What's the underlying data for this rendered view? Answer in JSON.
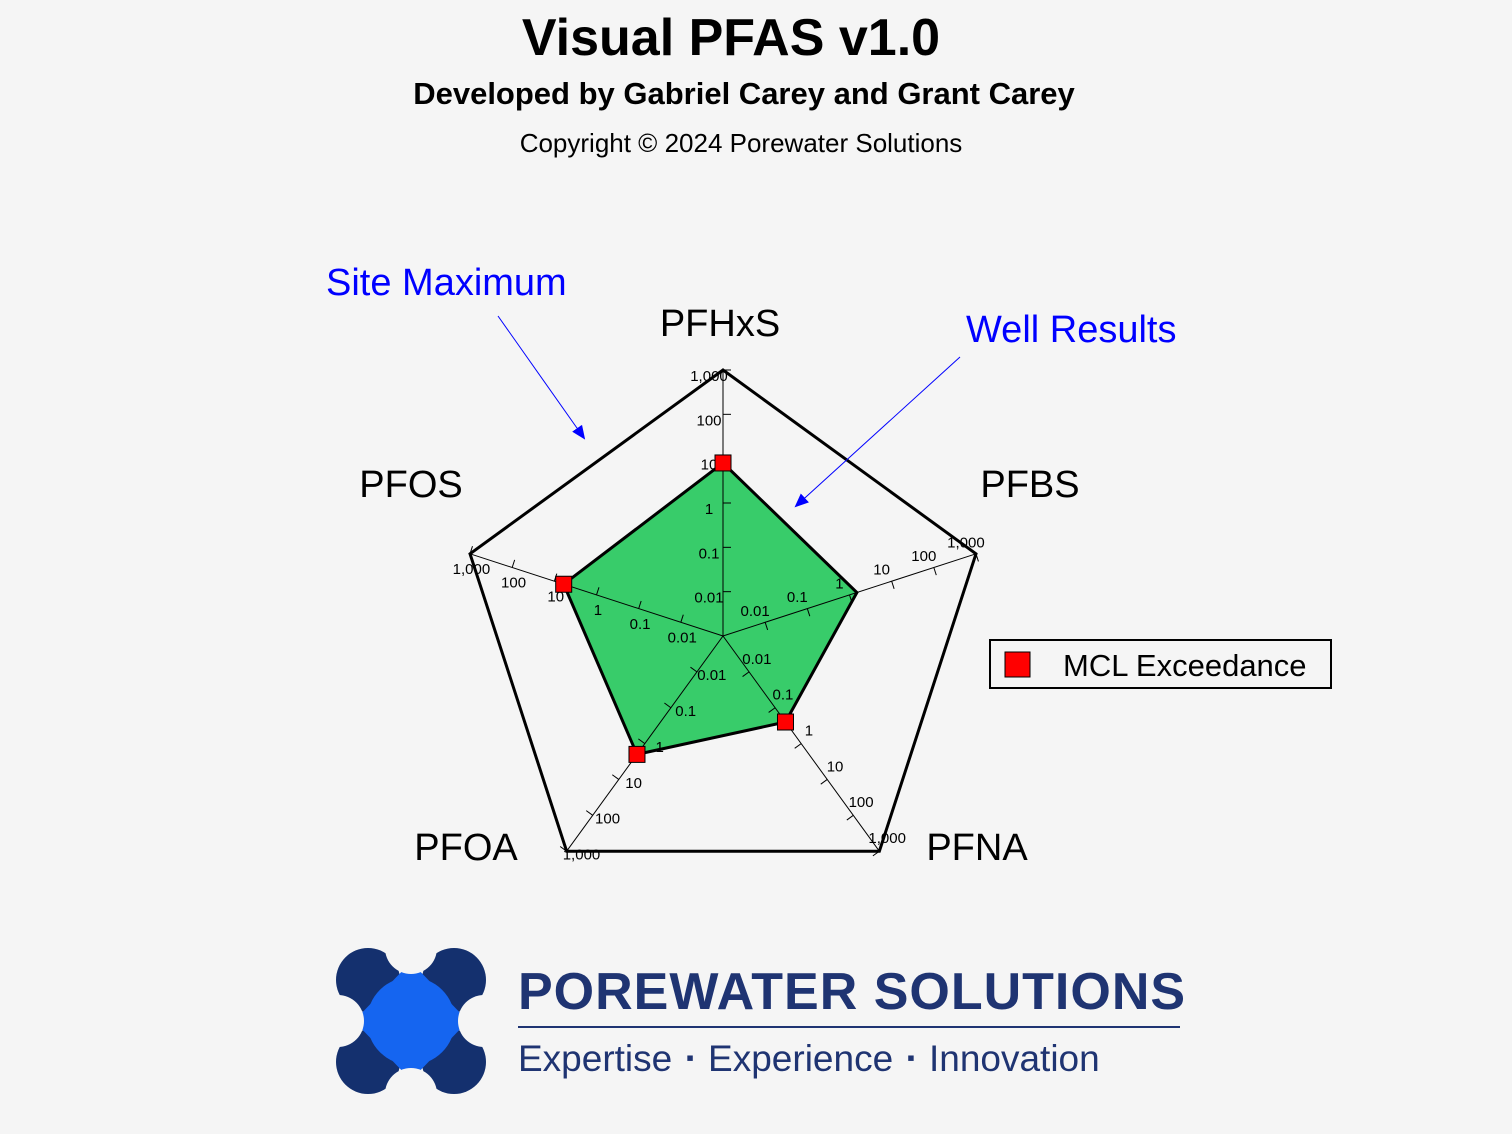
{
  "header": {
    "title": "Visual PFAS v1.0",
    "subtitle": "Developed by Gabriel Carey and Grant Carey",
    "copyright": "Copyright © 2024 Porewater Solutions"
  },
  "chart_data": {
    "type": "radar",
    "scale": "log",
    "axes": [
      "PFHxS",
      "PFBS",
      "PFNA",
      "PFOA",
      "PFOS"
    ],
    "tick_values": [
      0.01,
      0.1,
      1,
      10,
      100,
      1000
    ],
    "tick_labels": [
      "0.01",
      "0.1",
      "1",
      "10",
      "100",
      "1,000"
    ],
    "range": [
      0.001,
      1000
    ],
    "series": [
      {
        "name": "Site Maximum",
        "values": [
          1000,
          1000,
          1000,
          1000,
          1000
        ],
        "fill": "none",
        "stroke": "#000000"
      },
      {
        "name": "Well Results",
        "values": [
          8,
          1.5,
          0.25,
          2,
          6
        ],
        "fill": "#38cc6a",
        "stroke": "#000000"
      }
    ],
    "mcl_exceedance": [
      true,
      false,
      true,
      true,
      true
    ],
    "annotations": [
      {
        "text": "Site Maximum",
        "color": "#0000ff"
      },
      {
        "text": "Well Results",
        "color": "#0000ff"
      }
    ],
    "legend": {
      "label": "MCL Exceedance",
      "marker_color": "#ff0000",
      "position": "right"
    }
  },
  "brand": {
    "name": "POREWATER SOLUTIONS",
    "tagline": [
      "Expertise",
      "Experience",
      "Innovation"
    ],
    "separator": "▪",
    "colors": {
      "dark": "#14306e",
      "accent": "#1565f0",
      "text": "#1f3472"
    }
  }
}
